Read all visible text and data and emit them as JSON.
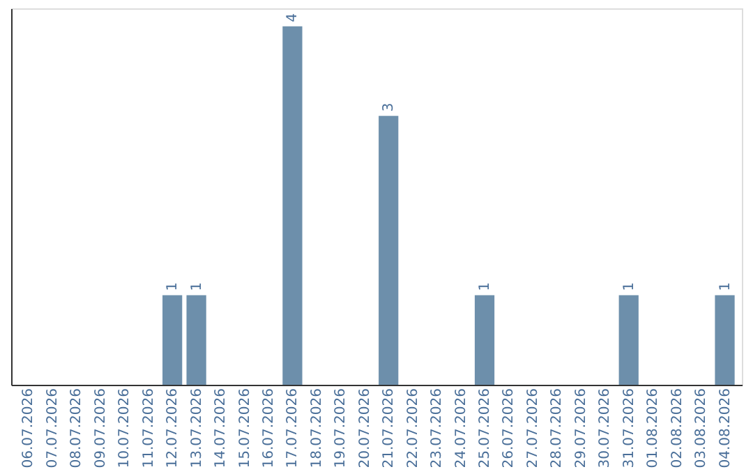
{
  "chart_data": {
    "type": "bar",
    "categories": [
      "06.07.2026",
      "07.07.2026",
      "08.07.2026",
      "09.07.2026",
      "10.07.2026",
      "11.07.2026",
      "12.07.2026",
      "13.07.2026",
      "14.07.2026",
      "15.07.2026",
      "16.07.2026",
      "17.07.2026",
      "18.07.2026",
      "19.07.2026",
      "20.07.2026",
      "21.07.2026",
      "22.07.2026",
      "23.07.2026",
      "24.07.2026",
      "25.07.2026",
      "26.07.2026",
      "27.07.2026",
      "28.07.2026",
      "29.07.2026",
      "30.07.2026",
      "31.07.2026",
      "01.08.2026",
      "02.08.2026",
      "03.08.2026",
      "04.08.2026"
    ],
    "values": [
      0,
      0,
      0,
      0,
      0,
      0,
      1,
      1,
      0,
      0,
      0,
      4,
      0,
      0,
      0,
      3,
      0,
      0,
      0,
      1,
      0,
      0,
      0,
      0,
      0,
      1,
      0,
      0,
      0,
      1
    ],
    "value_labels": [
      null,
      null,
      null,
      null,
      null,
      null,
      "1",
      "1",
      null,
      null,
      null,
      "4",
      null,
      null,
      null,
      "3",
      null,
      null,
      null,
      "1",
      null,
      null,
      null,
      null,
      null,
      "1",
      null,
      null,
      null,
      "1"
    ],
    "color": "#6d8fab",
    "grid": false,
    "tick_labels": "x"
  }
}
